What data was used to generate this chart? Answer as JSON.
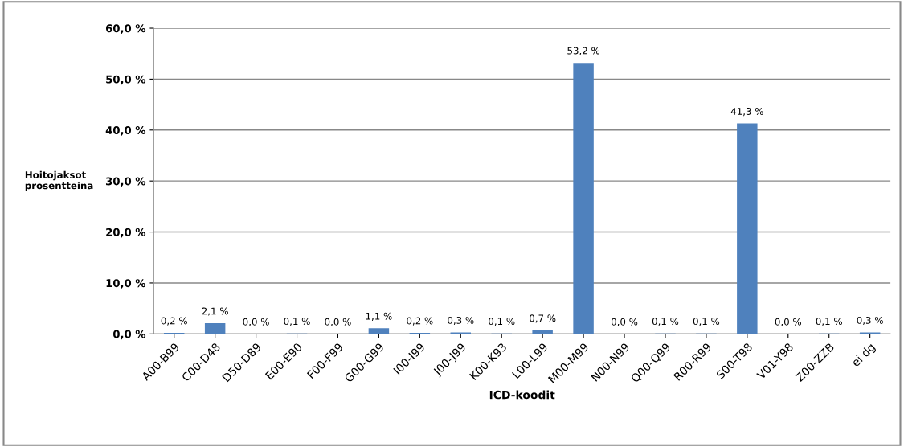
{
  "chart_data": {
    "type": "bar",
    "xlabel": "ICD-koodit",
    "ylabel": "Hoitojaksot\nprosentteina",
    "categories": [
      "A00-B99",
      "C00-D48",
      "D50-D89",
      "E00-E90",
      "F00-F99",
      "G00-G99",
      "I00-I99",
      "J00-J99",
      "K00-K93",
      "L00-L99",
      "M00-M99",
      "N00-N99",
      "Q00-Q99",
      "R00-R99",
      "S00-T98",
      "V01-Y98",
      "Z00-ZZB",
      "ei dg"
    ],
    "values": [
      0.2,
      2.1,
      0.0,
      0.1,
      0.0,
      1.1,
      0.2,
      0.3,
      0.1,
      0.7,
      53.2,
      0.0,
      0.1,
      0.1,
      41.3,
      0.0,
      0.1,
      0.3
    ],
    "value_labels": [
      "0,2 %",
      "2,1 %",
      "0,0 %",
      "0,1 %",
      "0,0 %",
      "1,1 %",
      "0,2 %",
      "0,3 %",
      "0,1 %",
      "0,7 %",
      "53,2 %",
      "0,0 %",
      "0,1 %",
      "0,1 %",
      "41,3 %",
      "0,0 %",
      "0,1 %",
      "0,3 %"
    ],
    "color": "#4f81bd",
    "ylim": [
      0,
      60
    ],
    "yticks": [
      {
        "value": 0,
        "label": "0,0 %"
      },
      {
        "value": 10,
        "label": "10,0 %"
      },
      {
        "value": 20,
        "label": "20,0 %"
      },
      {
        "value": 30,
        "label": "30,0 %"
      },
      {
        "value": 40,
        "label": "40,0 %"
      },
      {
        "value": 50,
        "label": "50,0 %"
      },
      {
        "value": 60,
        "label": "60,0 %"
      }
    ],
    "grid": "y"
  }
}
